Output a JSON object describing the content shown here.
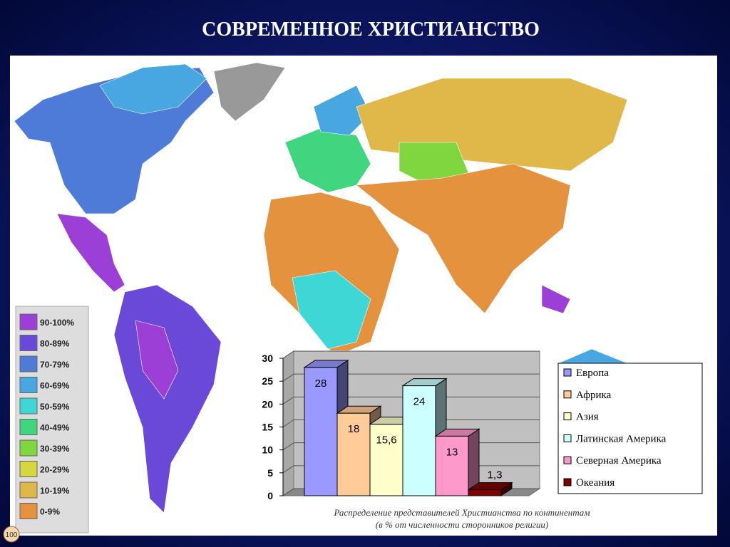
{
  "title": "СОВРЕМЕННОЕ ХРИСТИАНСТВО",
  "slide_number": "100",
  "map_legend": [
    {
      "label": "90-100%",
      "color": "#9b3fd6"
    },
    {
      "label": "80-89%",
      "color": "#6a48d8"
    },
    {
      "label": "70-79%",
      "color": "#4f7bd8"
    },
    {
      "label": "60-69%",
      "color": "#48a6e0"
    },
    {
      "label": "50-59%",
      "color": "#3fd6d6"
    },
    {
      "label": "40-49%",
      "color": "#3fd67f"
    },
    {
      "label": "30-39%",
      "color": "#7fd63f"
    },
    {
      "label": "20-29%",
      "color": "#d6d63f"
    },
    {
      "label": "10-19%",
      "color": "#e0b84a"
    },
    {
      "label": "0-9%",
      "color": "#e5923f"
    }
  ],
  "chart_data": {
    "type": "bar3d",
    "caption": [
      "Распределение представителей Христианства по континентам",
      "(в % от численности сторонников религии)"
    ],
    "categories": [
      "Европа",
      "Африка",
      "Азия",
      "Латинская Америка",
      "Северная Америка",
      "Океания"
    ],
    "values": [
      28,
      18,
      15.6,
      24,
      13,
      1.3
    ],
    "value_labels": [
      "28",
      "18",
      "15,6",
      "24",
      "13",
      "1,3"
    ],
    "colors": [
      "#9999ff",
      "#ffcc99",
      "#ffffcc",
      "#ccffff",
      "#ff99cc",
      "#800000"
    ],
    "ylim": [
      0,
      30
    ],
    "yticks": [
      0,
      5,
      10,
      15,
      20,
      25,
      30
    ],
    "grid": true,
    "legend": "right"
  }
}
